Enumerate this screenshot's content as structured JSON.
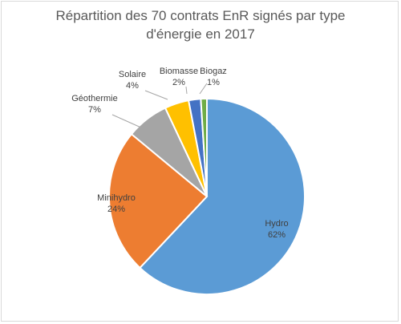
{
  "chart_data": {
    "type": "pie",
    "title_line1": "Répartition des 70 contrats EnR signés par type",
    "title_line2": "d'énergie en 2017",
    "slices": [
      {
        "label": "Hydro",
        "pct_text": "62%",
        "value": 62,
        "color": "#5b9bd5"
      },
      {
        "label": "Minihydro",
        "pct_text": "24%",
        "value": 24,
        "color": "#ed7d31"
      },
      {
        "label": "Géothermie",
        "pct_text": "7%",
        "value": 7,
        "color": "#a5a5a5"
      },
      {
        "label": "Solaire",
        "pct_text": "4%",
        "value": 4,
        "color": "#ffc000"
      },
      {
        "label": "Biomasse",
        "pct_text": "2%",
        "value": 2,
        "color": "#4472c4"
      },
      {
        "label": "Biogaz",
        "pct_text": "1%",
        "value": 1,
        "color": "#70ad47"
      }
    ]
  }
}
